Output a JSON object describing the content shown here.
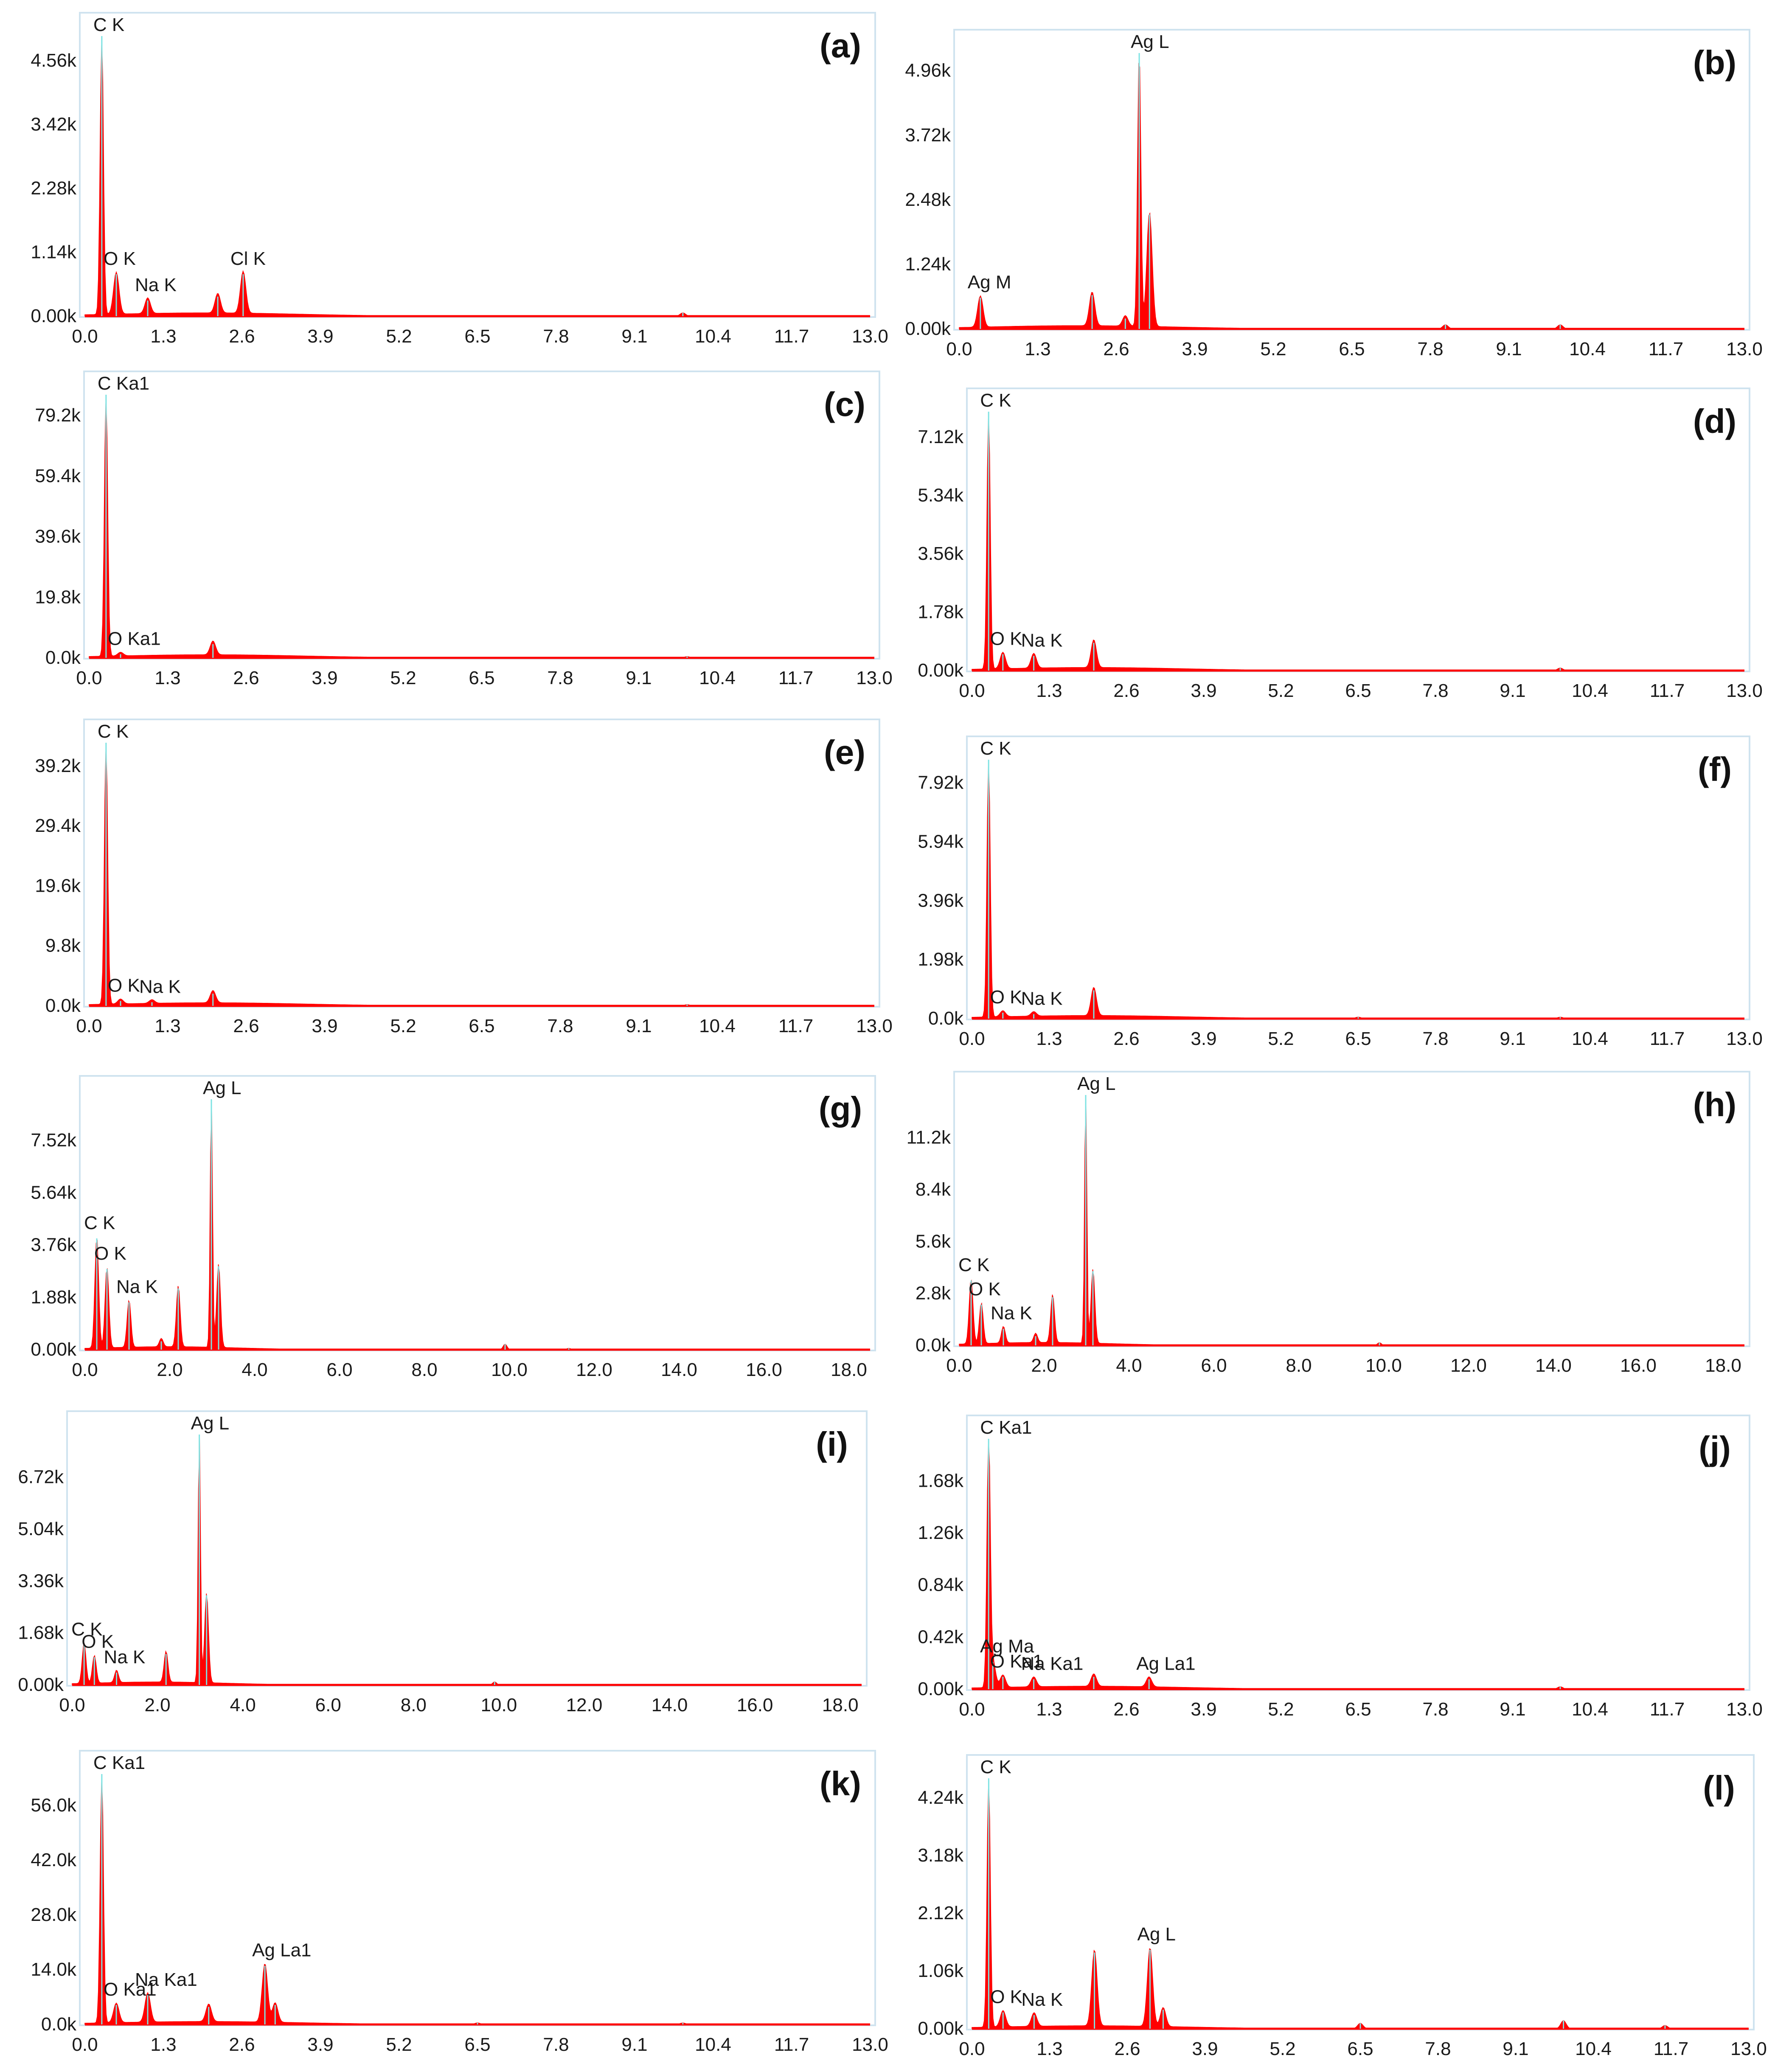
{
  "colors": {
    "spectrum": "#ff0000",
    "peak_line": "#7ee3e3",
    "frame": "#cfe3ef",
    "baseline": "#ff0000"
  },
  "chart_data": [
    {
      "type": "area",
      "panel": "(a)",
      "x_ticks": [
        "0.0",
        "1.3",
        "2.6",
        "3.9",
        "5.2",
        "6.5",
        "7.8",
        "9.1",
        "10.4",
        "11.7",
        "13.0"
      ],
      "y_ticks": [
        "0.00k",
        "1.14k",
        "2.28k",
        "3.42k",
        "4.56k"
      ],
      "xlim": [
        0,
        13
      ],
      "ylim": [
        0,
        5.0
      ],
      "peaks": [
        {
          "x": 0.28,
          "y": 5.0,
          "label": "C K"
        },
        {
          "x": 0.52,
          "y": 0.75,
          "label": "O K"
        },
        {
          "x": 1.04,
          "y": 0.28,
          "label": "Na K"
        },
        {
          "x": 2.2,
          "y": 0.35,
          "label": ""
        },
        {
          "x": 2.62,
          "y": 0.75,
          "label": "Cl K"
        },
        {
          "x": 9.9,
          "y": 0.06,
          "label": ""
        }
      ]
    },
    {
      "type": "area",
      "panel": "(b)",
      "x_ticks": [
        "0.0",
        "1.3",
        "2.6",
        "3.9",
        "5.2",
        "6.5",
        "7.8",
        "9.1",
        "10.4",
        "11.7",
        "13.0"
      ],
      "y_ticks": [
        "0.00k",
        "1.24k",
        "2.48k",
        "3.72k",
        "4.96k"
      ],
      "xlim": [
        0,
        13
      ],
      "ylim": [
        0,
        5.3
      ],
      "peaks": [
        {
          "x": 0.35,
          "y": 0.6,
          "label": "Ag M"
        },
        {
          "x": 2.2,
          "y": 0.65,
          "label": ""
        },
        {
          "x": 2.75,
          "y": 0.2,
          "label": ""
        },
        {
          "x": 2.98,
          "y": 5.3,
          "label": "Ag L"
        },
        {
          "x": 3.15,
          "y": 2.2,
          "label": ""
        },
        {
          "x": 8.05,
          "y": 0.08,
          "label": ""
        },
        {
          "x": 9.95,
          "y": 0.08,
          "label": ""
        }
      ]
    },
    {
      "type": "area",
      "panel": "(c)",
      "x_ticks": [
        "0.0",
        "1.3",
        "2.6",
        "3.9",
        "5.2",
        "6.5",
        "7.8",
        "9.1",
        "10.4",
        "11.7",
        "13.0"
      ],
      "y_ticks": [
        "0.0k",
        "19.8k",
        "39.6k",
        "59.4k",
        "79.2k"
      ],
      "xlim": [
        0,
        13
      ],
      "ylim": [
        0,
        86
      ],
      "peaks": [
        {
          "x": 0.28,
          "y": 86,
          "label": "C Ka1"
        },
        {
          "x": 0.52,
          "y": 1.2,
          "label": "O Ka1"
        },
        {
          "x": 2.05,
          "y": 4.5,
          "label": ""
        },
        {
          "x": 9.9,
          "y": 0.4,
          "label": ""
        }
      ]
    },
    {
      "type": "area",
      "panel": "(d)",
      "x_ticks": [
        "0.0",
        "1.3",
        "2.6",
        "3.9",
        "5.2",
        "6.5",
        "7.8",
        "9.1",
        "10.4",
        "11.7",
        "13.0"
      ],
      "y_ticks": [
        "0.00k",
        "1.78k",
        "3.56k",
        "5.34k",
        "7.12k"
      ],
      "xlim": [
        0,
        13
      ],
      "ylim": [
        0,
        7.9
      ],
      "peaks": [
        {
          "x": 0.28,
          "y": 7.9,
          "label": "C K"
        },
        {
          "x": 0.52,
          "y": 0.5,
          "label": "O K"
        },
        {
          "x": 1.04,
          "y": 0.45,
          "label": "Na K"
        },
        {
          "x": 2.05,
          "y": 0.85,
          "label": ""
        },
        {
          "x": 9.9,
          "y": 0.08,
          "label": ""
        }
      ]
    },
    {
      "type": "area",
      "panel": "(e)",
      "x_ticks": [
        "0.0",
        "1.3",
        "2.6",
        "3.9",
        "5.2",
        "6.5",
        "7.8",
        "9.1",
        "10.4",
        "11.7",
        "13.0"
      ],
      "y_ticks": [
        "0.0k",
        "9.8k",
        "19.6k",
        "29.4k",
        "39.2k"
      ],
      "xlim": [
        0,
        13
      ],
      "ylim": [
        0,
        43
      ],
      "peaks": [
        {
          "x": 0.28,
          "y": 43,
          "label": "C K"
        },
        {
          "x": 0.52,
          "y": 0.8,
          "label": "O K"
        },
        {
          "x": 1.04,
          "y": 0.6,
          "label": "Na K"
        },
        {
          "x": 2.05,
          "y": 2.0,
          "label": ""
        },
        {
          "x": 9.9,
          "y": 0.2,
          "label": ""
        }
      ]
    },
    {
      "type": "area",
      "panel": "(f)",
      "x_ticks": [
        "0.0",
        "1.3",
        "2.6",
        "3.9",
        "5.2",
        "6.5",
        "7.8",
        "9.1",
        "10.4",
        "11.7",
        "13.0"
      ],
      "y_ticks": [
        "0.0k",
        "1.98k",
        "3.96k",
        "5.94k",
        "7.92k"
      ],
      "xlim": [
        0,
        13
      ],
      "ylim": [
        0,
        8.7
      ],
      "peaks": [
        {
          "x": 0.28,
          "y": 8.7,
          "label": "C K"
        },
        {
          "x": 0.52,
          "y": 0.2,
          "label": "O K"
        },
        {
          "x": 1.04,
          "y": 0.15,
          "label": "Na K"
        },
        {
          "x": 2.05,
          "y": 0.95,
          "label": ""
        },
        {
          "x": 6.5,
          "y": 0.05,
          "label": ""
        },
        {
          "x": 9.9,
          "y": 0.05,
          "label": ""
        }
      ]
    },
    {
      "type": "area",
      "panel": "(g)",
      "x_ticks": [
        "0.0",
        "2.0",
        "4.0",
        "6.0",
        "8.0",
        "10.0",
        "12.0",
        "14.0",
        "16.0",
        "18.0"
      ],
      "y_ticks": [
        "0.00k",
        "1.88k",
        "3.76k",
        "5.64k",
        "7.52k"
      ],
      "xlim": [
        0,
        18.5
      ],
      "ylim": [
        0,
        9.0
      ],
      "peaks": [
        {
          "x": 0.28,
          "y": 4.0,
          "label": "C K"
        },
        {
          "x": 0.52,
          "y": 2.9,
          "label": "O K"
        },
        {
          "x": 1.04,
          "y": 1.7,
          "label": "Na K"
        },
        {
          "x": 1.8,
          "y": 0.3,
          "label": ""
        },
        {
          "x": 2.2,
          "y": 2.2,
          "label": ""
        },
        {
          "x": 2.98,
          "y": 9.0,
          "label": "Ag L"
        },
        {
          "x": 3.15,
          "y": 3.0,
          "label": ""
        },
        {
          "x": 9.9,
          "y": 0.2,
          "label": ""
        },
        {
          "x": 11.4,
          "y": 0.05,
          "label": ""
        }
      ]
    },
    {
      "type": "area",
      "panel": "(h)",
      "x_ticks": [
        "0.0",
        "2.0",
        "4.0",
        "6.0",
        "8.0",
        "10.0",
        "12.0",
        "14.0",
        "16.0",
        "18.0"
      ],
      "y_ticks": [
        "0.0k",
        "2.8k",
        "5.6k",
        "8.4k",
        "11.2k"
      ],
      "xlim": [
        0,
        18.5
      ],
      "ylim": [
        0,
        13.5
      ],
      "peaks": [
        {
          "x": 0.28,
          "y": 3.5,
          "label": "C K"
        },
        {
          "x": 0.52,
          "y": 2.2,
          "label": "O K"
        },
        {
          "x": 1.04,
          "y": 0.9,
          "label": "Na K"
        },
        {
          "x": 1.8,
          "y": 0.5,
          "label": ""
        },
        {
          "x": 2.2,
          "y": 2.6,
          "label": ""
        },
        {
          "x": 2.98,
          "y": 13.5,
          "label": "Ag L"
        },
        {
          "x": 3.15,
          "y": 4.0,
          "label": ""
        },
        {
          "x": 9.9,
          "y": 0.15,
          "label": ""
        }
      ]
    },
    {
      "type": "area",
      "panel": "(i)",
      "x_ticks": [
        "0.0",
        "2.0",
        "4.0",
        "6.0",
        "8.0",
        "10.0",
        "12.0",
        "14.0",
        "16.0",
        "18.0"
      ],
      "y_ticks": [
        "0.00k",
        "1.68k",
        "3.36k",
        "5.04k",
        "6.72k"
      ],
      "xlim": [
        0,
        18.5
      ],
      "ylim": [
        0,
        8.1
      ],
      "peaks": [
        {
          "x": 0.28,
          "y": 1.3,
          "label": "C K"
        },
        {
          "x": 0.52,
          "y": 0.9,
          "label": "O K"
        },
        {
          "x": 1.04,
          "y": 0.4,
          "label": "Na K"
        },
        {
          "x": 2.2,
          "y": 1.0,
          "label": ""
        },
        {
          "x": 2.98,
          "y": 8.1,
          "label": "Ag L"
        },
        {
          "x": 3.15,
          "y": 2.9,
          "label": ""
        },
        {
          "x": 9.9,
          "y": 0.1,
          "label": ""
        }
      ]
    },
    {
      "type": "area",
      "panel": "(j)",
      "x_ticks": [
        "0.0",
        "1.3",
        "2.6",
        "3.9",
        "5.2",
        "6.5",
        "7.8",
        "9.1",
        "10.4",
        "11.7",
        "13.0"
      ],
      "y_ticks": [
        "0.00k",
        "0.42k",
        "0.84k",
        "1.26k",
        "1.68k"
      ],
      "xlim": [
        0,
        13
      ],
      "ylim": [
        0,
        2.02
      ],
      "peaks": [
        {
          "x": 0.28,
          "y": 2.02,
          "label": "C Ka1"
        },
        {
          "x": 0.35,
          "y": 0.22,
          "label": "Ag Ma"
        },
        {
          "x": 0.52,
          "y": 0.1,
          "label": "O Ka1"
        },
        {
          "x": 1.04,
          "y": 0.08,
          "label": "Na Ka1"
        },
        {
          "x": 2.05,
          "y": 0.1,
          "label": ""
        },
        {
          "x": 2.98,
          "y": 0.08,
          "label": "Ag La1"
        },
        {
          "x": 9.9,
          "y": 0.02,
          "label": ""
        }
      ]
    },
    {
      "type": "area",
      "panel": "(k)",
      "x_ticks": [
        "0.0",
        "1.3",
        "2.6",
        "3.9",
        "5.2",
        "6.5",
        "7.8",
        "9.1",
        "10.4",
        "11.7",
        "13.0"
      ],
      "y_ticks": [
        "0.0k",
        "14.0k",
        "28.0k",
        "42.0k",
        "56.0k"
      ],
      "xlim": [
        0,
        13
      ],
      "ylim": [
        0,
        64
      ],
      "peaks": [
        {
          "x": 0.28,
          "y": 64,
          "label": "C Ka1"
        },
        {
          "x": 0.52,
          "y": 5.0,
          "label": "O Ka1"
        },
        {
          "x": 1.04,
          "y": 7.5,
          "label": "Na Ka1"
        },
        {
          "x": 2.05,
          "y": 4.5,
          "label": ""
        },
        {
          "x": 2.98,
          "y": 15,
          "label": "Ag La1"
        },
        {
          "x": 3.15,
          "y": 5.0,
          "label": ""
        },
        {
          "x": 6.5,
          "y": 0.4,
          "label": ""
        },
        {
          "x": 9.9,
          "y": 0.4,
          "label": ""
        }
      ]
    },
    {
      "type": "area",
      "panel": "(l)",
      "x_ticks": [
        "0.0",
        "1.3",
        "2.6",
        "3.9",
        "5.2",
        "6.5",
        "7.8",
        "9.1",
        "10.4",
        "11.7",
        "13.0"
      ],
      "y_ticks": [
        "0.00k",
        "1.06k",
        "2.12k",
        "3.18k",
        "4.24k"
      ],
      "xlim": [
        0,
        13
      ],
      "ylim": [
        0,
        4.6
      ],
      "peaks": [
        {
          "x": 0.28,
          "y": 4.6,
          "label": "C K"
        },
        {
          "x": 0.52,
          "y": 0.3,
          "label": "O K"
        },
        {
          "x": 1.04,
          "y": 0.25,
          "label": "Na K"
        },
        {
          "x": 2.05,
          "y": 1.4,
          "label": ""
        },
        {
          "x": 2.98,
          "y": 1.45,
          "label": "Ag L"
        },
        {
          "x": 3.2,
          "y": 0.35,
          "label": ""
        },
        {
          "x": 6.5,
          "y": 0.1,
          "label": ""
        },
        {
          "x": 9.9,
          "y": 0.15,
          "label": ""
        },
        {
          "x": 11.6,
          "y": 0.06,
          "label": ""
        }
      ]
    }
  ]
}
